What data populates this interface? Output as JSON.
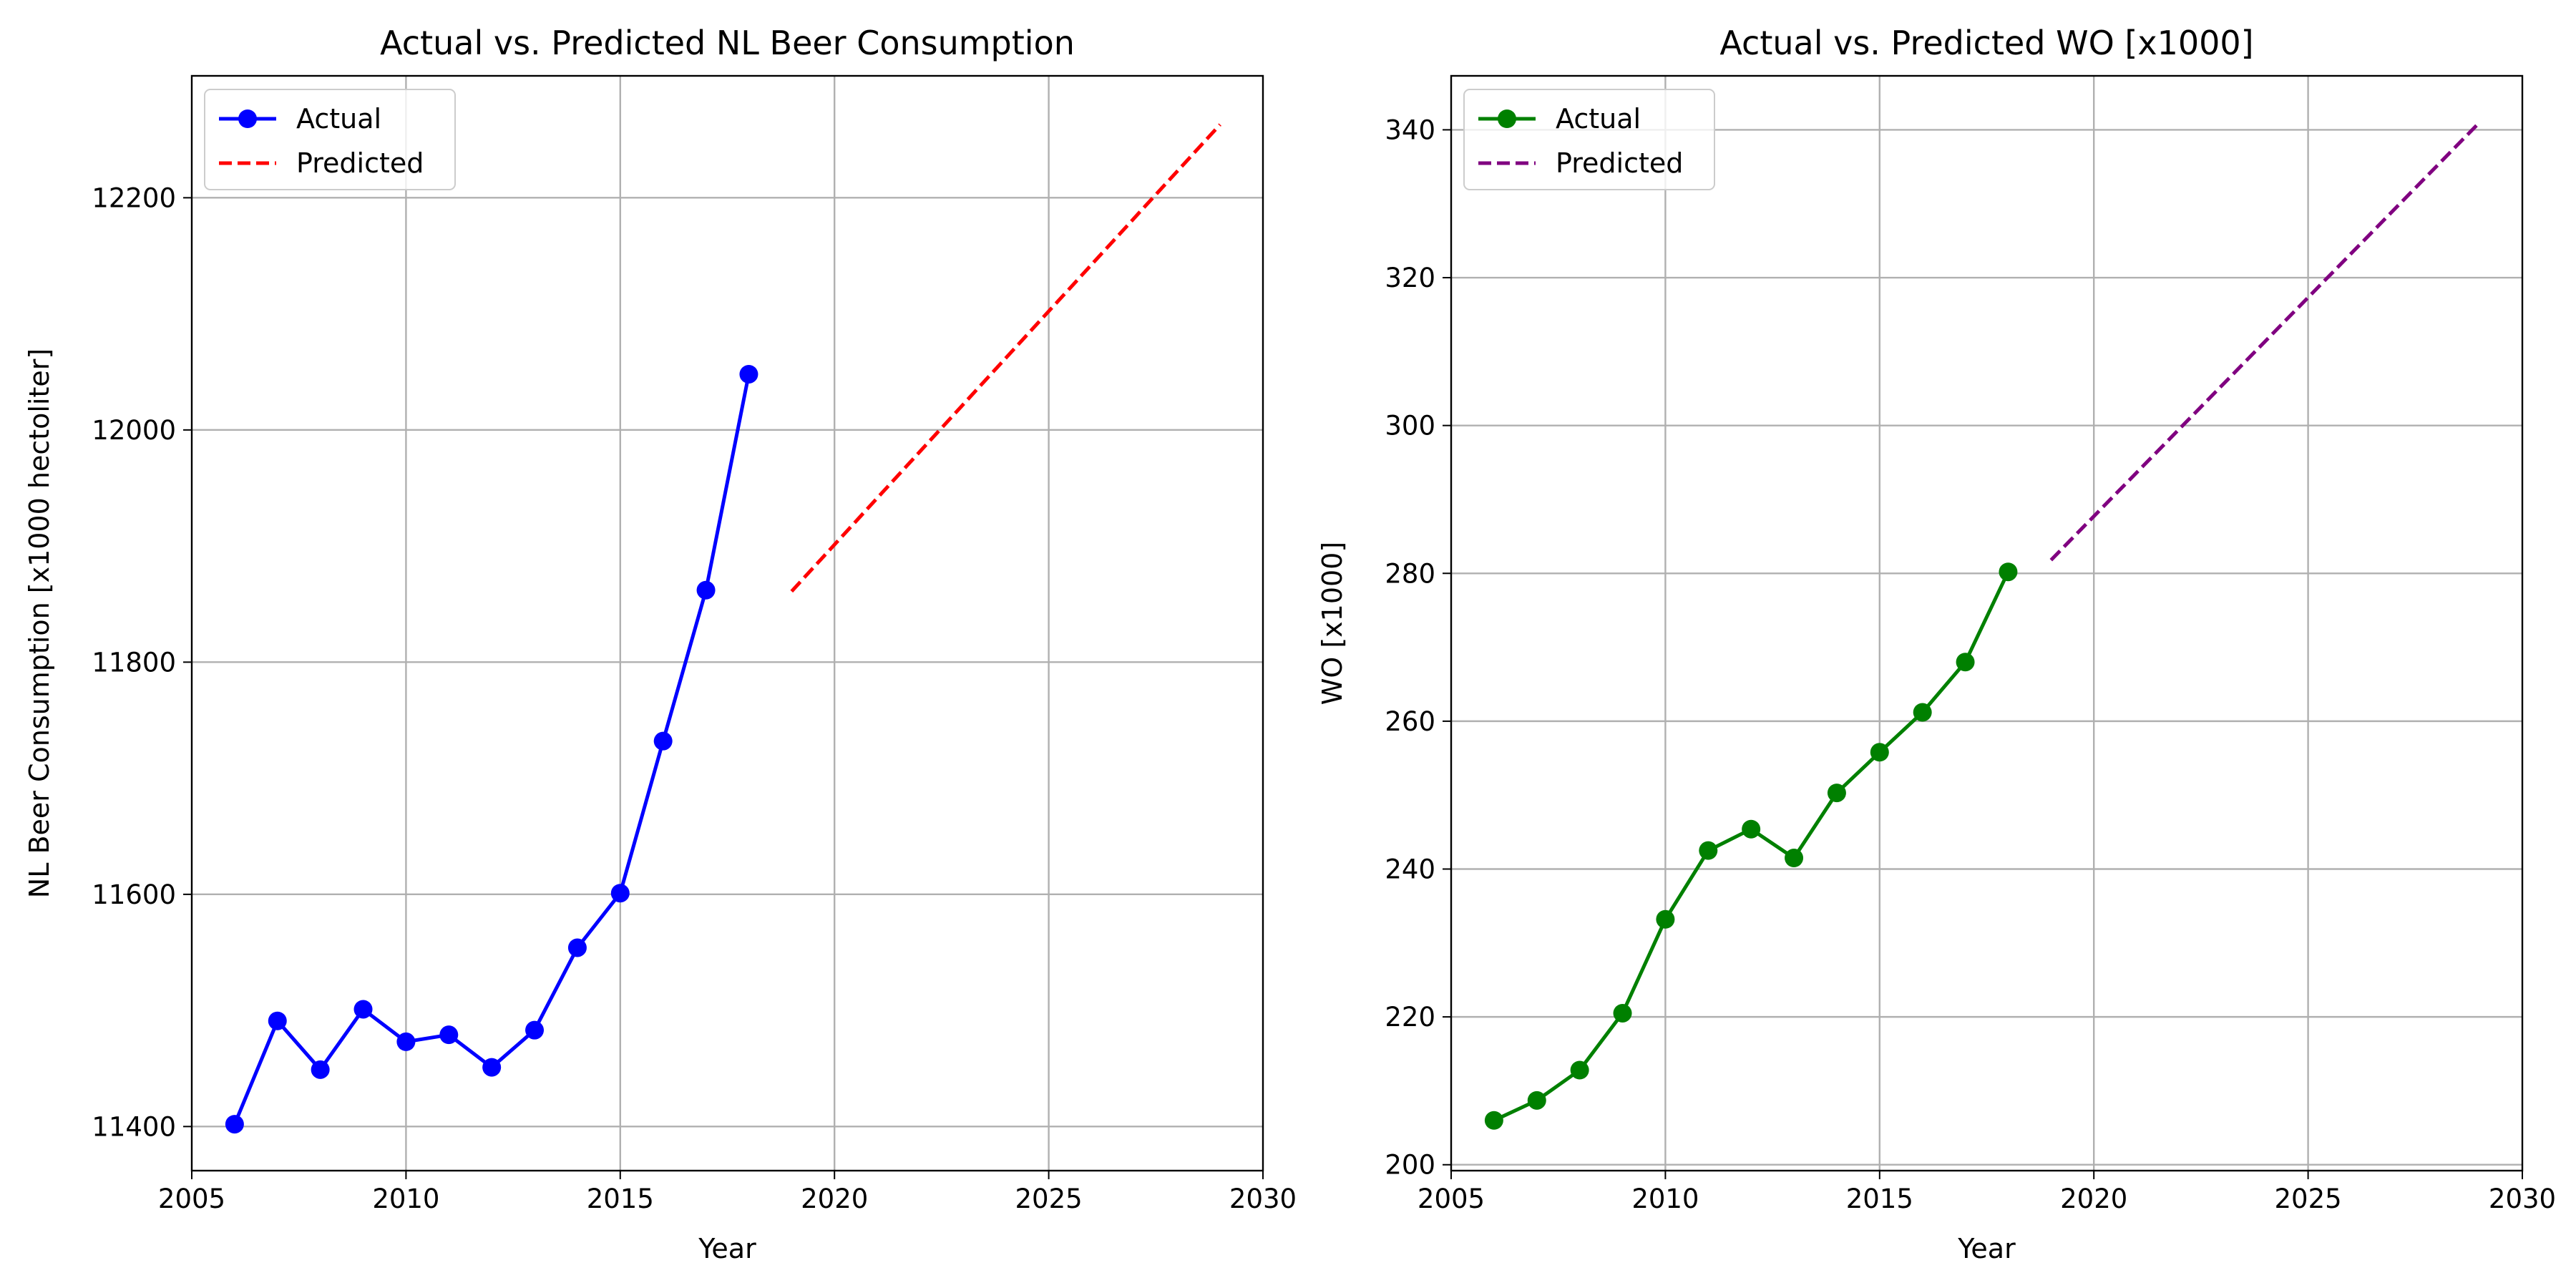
{
  "chart_data": [
    {
      "type": "line",
      "title": "Actual vs. Predicted NL Beer Consumption",
      "xlabel": "Year",
      "ylabel": "NL Beer Consumption [x1000 hectoliter]",
      "xlim": [
        2005,
        2030
      ],
      "ylim": [
        11362,
        12305
      ],
      "xticks": [
        2005,
        2010,
        2015,
        2020,
        2025,
        2030
      ],
      "yticks": [
        11400,
        11600,
        11800,
        12000,
        12200
      ],
      "grid": true,
      "legend": "upper-left",
      "series": [
        {
          "name": "Actual",
          "style": "solid",
          "marker": "circle",
          "color": "#0000ff",
          "x": [
            2006,
            2007,
            2008,
            2009,
            2010,
            2011,
            2012,
            2013,
            2014,
            2015,
            2016,
            2017,
            2018
          ],
          "y": [
            11402,
            11491,
            11449,
            11501,
            11473,
            11479,
            11451,
            11483,
            11554,
            11601,
            11732,
            11862,
            12048
          ]
        },
        {
          "name": "Predicted",
          "style": "dashed",
          "marker": "none",
          "color": "#ff0000",
          "x": [
            2019,
            2029
          ],
          "y": [
            11861,
            12263
          ]
        }
      ]
    },
    {
      "type": "line",
      "title": "Actual vs. Predicted WO [x1000]",
      "xlabel": "Year",
      "ylabel": "WO [x1000]",
      "xlim": [
        2005,
        2030
      ],
      "ylim": [
        199.2,
        347.3
      ],
      "xticks": [
        2005,
        2010,
        2015,
        2020,
        2025,
        2030
      ],
      "yticks": [
        200,
        220,
        240,
        260,
        280,
        300,
        320,
        340
      ],
      "grid": true,
      "legend": "upper-left",
      "series": [
        {
          "name": "Actual",
          "style": "solid",
          "marker": "circle",
          "color": "#008000",
          "x": [
            2006,
            2007,
            2008,
            2009,
            2010,
            2011,
            2012,
            2013,
            2014,
            2015,
            2016,
            2017,
            2018
          ],
          "y": [
            206.0,
            208.7,
            212.8,
            220.5,
            233.2,
            242.5,
            245.4,
            241.5,
            250.3,
            255.8,
            261.2,
            268.0,
            280.2
          ]
        },
        {
          "name": "Predicted",
          "style": "dashed",
          "marker": "none",
          "color": "#800080",
          "x": [
            2019,
            2029
          ],
          "y": [
            281.8,
            341.0
          ]
        }
      ]
    }
  ]
}
